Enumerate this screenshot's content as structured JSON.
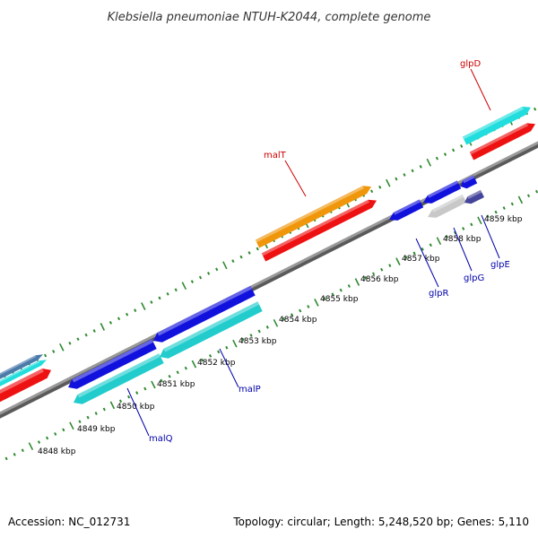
{
  "title": "Klebsiella pneumoniae NTUH-K2044, complete genome",
  "footer": {
    "accession": "Accession: NC_012731",
    "summary": "Topology: circular; Length: 5,248,520 bp; Genes: 5,110"
  },
  "colors": {
    "backbone": "#8a8a8a",
    "tick": "#2f8a2f",
    "label_forward": "#cc0000",
    "label_reverse": "#0000aa",
    "orange": "#f0960a",
    "red": "#ee1111",
    "blue": "#1111dd",
    "cyan": "#22cccc",
    "gray": "#c8c8c8",
    "navy": "#44449a",
    "steel": "#4a7aaa",
    "aqua": "#22dddd"
  },
  "scale_labels": [
    "4848 kbp",
    "4849 kbp",
    "4850 kbp",
    "4851 kbp",
    "4852 kbp",
    "4853 kbp",
    "4854 kbp",
    "4855 kbp",
    "4856 kbp",
    "4857 kbp",
    "4858 kbp",
    "4859 kbp"
  ],
  "gene_labels": [
    {
      "id": "malT",
      "text": "malT",
      "strand": "forward"
    },
    {
      "id": "glpD",
      "text": "glpD",
      "strand": "forward"
    },
    {
      "id": "malQ",
      "text": "malQ",
      "strand": "reverse"
    },
    {
      "id": "malP",
      "text": "malP",
      "strand": "reverse"
    },
    {
      "id": "glpR",
      "text": "glpR",
      "strand": "reverse"
    },
    {
      "id": "glpG",
      "text": "glpG",
      "strand": "reverse"
    },
    {
      "id": "glpE",
      "text": "glpE",
      "strand": "reverse"
    }
  ]
}
